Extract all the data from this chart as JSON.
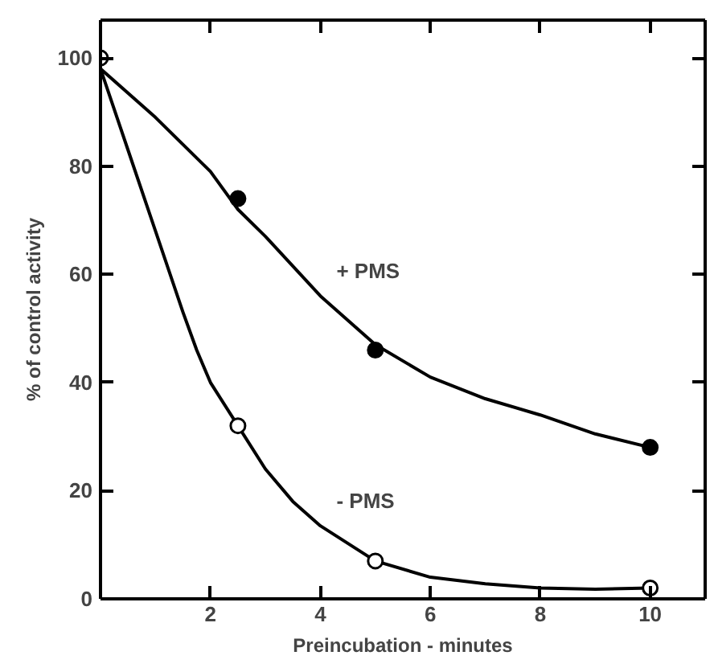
{
  "chart_data": {
    "type": "scatter",
    "xlabel": "Preincubation - minutes",
    "ylabel": "% of control activity",
    "xlim": [
      0,
      11
    ],
    "ylim": [
      0,
      107
    ],
    "xticks": [
      2,
      4,
      6,
      8,
      10
    ],
    "yticks": [
      0,
      20,
      40,
      60,
      80,
      100
    ],
    "grid": false,
    "marker": "circle",
    "series": [
      {
        "type": "line",
        "name": "+ PMS",
        "marker": "none",
        "color": "#000000",
        "x": [
          0,
          1,
          2,
          2.5,
          3,
          4,
          5,
          6,
          7,
          8,
          9,
          10
        ],
        "values": [
          98,
          89,
          79,
          72,
          67,
          56,
          47,
          41,
          37,
          34,
          30.5,
          28
        ]
      },
      {
        "type": "line",
        "name": "- PMS",
        "marker": "none",
        "color": "#000000",
        "x": [
          0,
          0.5,
          1,
          1.5,
          1.75,
          2,
          2.5,
          3,
          3.5,
          4,
          5,
          6,
          7,
          8,
          9,
          10
        ],
        "values": [
          98,
          83,
          68,
          53,
          46,
          40,
          32,
          24,
          18,
          13.5,
          7,
          4,
          2.8,
          2,
          1.8,
          2
        ]
      },
      {
        "color": "#000000",
        "x": [
          2.5,
          5,
          10
        ],
        "values": [
          74,
          46,
          28
        ]
      },
      {
        "color": "#ffffff",
        "x": [
          0,
          2.5,
          5,
          10
        ],
        "values": [
          100,
          32,
          7,
          2
        ]
      }
    ]
  }
}
